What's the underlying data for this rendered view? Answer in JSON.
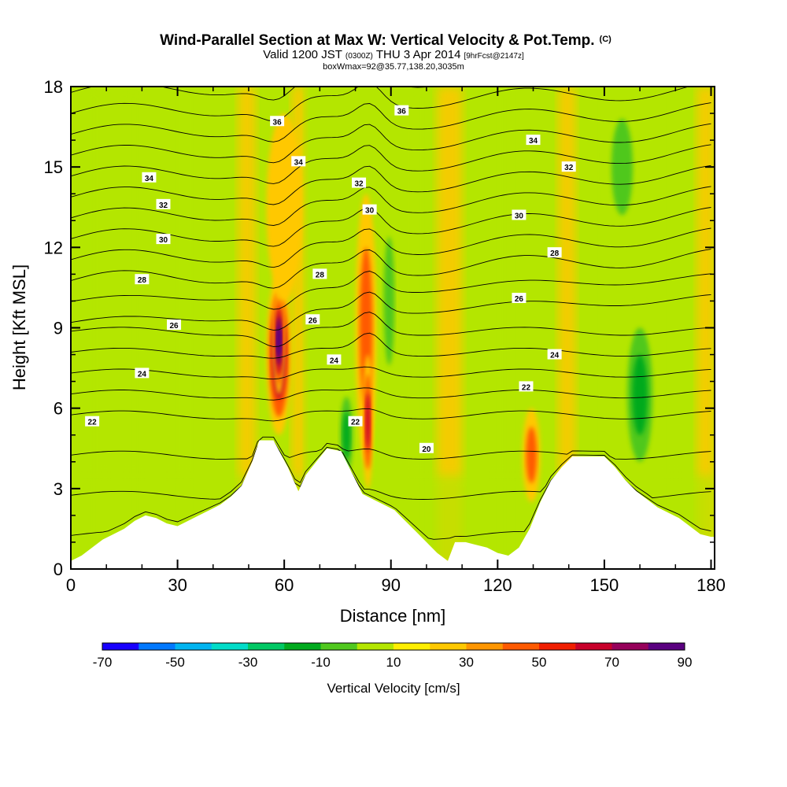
{
  "header": {
    "title_main": "Wind-Parallel Section at Max W: Vertical Velocity & Pot.Temp.",
    "title_c": "(C)",
    "sub_valid": "Valid 1200 JST",
    "sub_z": "(0300Z)",
    "sub_date": "THU 3 Apr 2014",
    "sub_fcst": "[9hrFcst@2147z]",
    "box_line": "boxWmax=92@35.77,138.20,3035m"
  },
  "chart_data": {
    "type": "heatmap",
    "xlabel": "Distance [nm]",
    "ylabel": "Height [Kft MSL]",
    "xlim": [
      0,
      181
    ],
    "ylim": [
      0,
      18
    ],
    "xticks": [
      "0",
      "30",
      "60",
      "90",
      "120",
      "150",
      "180"
    ],
    "yticks": [
      "0",
      "3",
      "6",
      "9",
      "12",
      "15",
      "18"
    ],
    "colorbar": {
      "label": "Vertical Velocity [cm/s]",
      "tick_labels": [
        "-70",
        "-50",
        "-30",
        "-10",
        "10",
        "30",
        "50",
        "70",
        "90"
      ],
      "colors": [
        "#1800ff",
        "#0078ff",
        "#00b4f0",
        "#00dcc8",
        "#00c864",
        "#00aa1e",
        "#50c81e",
        "#b4e600",
        "#ffee00",
        "#ffc800",
        "#ff9600",
        "#ff5a00",
        "#f01e00",
        "#c8002a",
        "#96005a",
        "#5a0080"
      ]
    },
    "terrain_kft": [
      [
        0,
        0.3
      ],
      [
        3,
        0.5
      ],
      [
        6,
        0.8
      ],
      [
        9,
        1.1
      ],
      [
        12,
        1.3
      ],
      [
        15,
        1.5
      ],
      [
        18,
        1.8
      ],
      [
        21,
        2.0
      ],
      [
        24,
        1.9
      ],
      [
        27,
        1.7
      ],
      [
        30,
        1.6
      ],
      [
        33,
        1.8
      ],
      [
        36,
        2.0
      ],
      [
        39,
        2.2
      ],
      [
        42,
        2.4
      ],
      [
        45,
        2.7
      ],
      [
        48,
        3.1
      ],
      [
        51,
        4.0
      ],
      [
        53,
        4.8
      ],
      [
        57,
        4.8
      ],
      [
        61,
        3.8
      ],
      [
        64,
        2.9
      ],
      [
        66,
        3.5
      ],
      [
        69,
        4.0
      ],
      [
        72,
        4.5
      ],
      [
        76,
        4.4
      ],
      [
        79,
        3.6
      ],
      [
        82,
        2.8
      ],
      [
        85,
        2.6
      ],
      [
        88,
        2.4
      ],
      [
        91,
        2.2
      ],
      [
        94,
        1.8
      ],
      [
        97,
        1.4
      ],
      [
        100,
        1.0
      ],
      [
        103,
        0.6
      ],
      [
        106,
        0.3
      ],
      [
        108,
        1.0
      ],
      [
        111,
        1.0
      ],
      [
        114,
        0.9
      ],
      [
        117,
        0.8
      ],
      [
        120,
        0.6
      ],
      [
        123,
        0.5
      ],
      [
        126,
        0.8
      ],
      [
        129,
        1.5
      ],
      [
        132,
        2.5
      ],
      [
        135,
        3.3
      ],
      [
        138,
        3.8
      ],
      [
        141,
        4.2
      ],
      [
        150,
        4.2
      ],
      [
        153,
        3.8
      ],
      [
        156,
        3.3
      ],
      [
        159,
        2.9
      ],
      [
        162,
        2.6
      ],
      [
        165,
        2.3
      ],
      [
        168,
        2.1
      ],
      [
        171,
        1.9
      ],
      [
        174,
        1.6
      ],
      [
        177,
        1.3
      ],
      [
        180,
        1.2
      ],
      [
        181,
        1.2
      ]
    ],
    "w_cells": [
      {
        "x": [
          55,
          62
        ],
        "y": [
          5,
          11
        ],
        "w": 75
      },
      {
        "x": [
          57,
          60
        ],
        "y": [
          6.5,
          10.5
        ],
        "w": 90
      },
      {
        "x": [
          80,
          86
        ],
        "y": [
          4,
          14
        ],
        "w": 30
      },
      {
        "x": [
          82,
          85
        ],
        "y": [
          3,
          8
        ],
        "w": 60
      },
      {
        "x": [
          127,
          132
        ],
        "y": [
          2.5,
          6
        ],
        "w": 45
      },
      {
        "x": [
          55,
          65
        ],
        "y": [
          10,
          17
        ],
        "w": 15
      },
      {
        "x": [
          75,
          80
        ],
        "y": [
          3,
          7
        ],
        "w": -30
      },
      {
        "x": [
          87,
          92
        ],
        "y": [
          6,
          14
        ],
        "w": -20
      },
      {
        "x": [
          150,
          160
        ],
        "y": [
          12,
          18
        ],
        "w": -25
      },
      {
        "x": [
          155,
          165
        ],
        "y": [
          3,
          10
        ],
        "w": -30
      }
    ],
    "contour_labels": [
      {
        "text": "36",
        "x": 58,
        "y": 16.7
      },
      {
        "text": "36",
        "x": 93,
        "y": 17.1
      },
      {
        "text": "34",
        "x": 64,
        "y": 15.2
      },
      {
        "text": "34",
        "x": 22,
        "y": 14.6
      },
      {
        "text": "34",
        "x": 130,
        "y": 16.0
      },
      {
        "text": "32",
        "x": 26,
        "y": 13.6
      },
      {
        "text": "32",
        "x": 81,
        "y": 14.4
      },
      {
        "text": "32",
        "x": 140,
        "y": 15.0
      },
      {
        "text": "30",
        "x": 26,
        "y": 12.3
      },
      {
        "text": "30",
        "x": 84,
        "y": 13.4
      },
      {
        "text": "30",
        "x": 126,
        "y": 13.2
      },
      {
        "text": "28",
        "x": 20,
        "y": 10.8
      },
      {
        "text": "28",
        "x": 70,
        "y": 11.0
      },
      {
        "text": "28",
        "x": 136,
        "y": 11.8
      },
      {
        "text": "26",
        "x": 29,
        "y": 9.1
      },
      {
        "text": "26",
        "x": 68,
        "y": 9.3
      },
      {
        "text": "26",
        "x": 126,
        "y": 10.1
      },
      {
        "text": "24",
        "x": 20,
        "y": 7.3
      },
      {
        "text": "24",
        "x": 74,
        "y": 7.8
      },
      {
        "text": "24",
        "x": 136,
        "y": 8.0
      },
      {
        "text": "22",
        "x": 6,
        "y": 5.5
      },
      {
        "text": "22",
        "x": 80,
        "y": 5.5
      },
      {
        "text": "22",
        "x": 128,
        "y": 6.8
      },
      {
        "text": "20",
        "x": 100,
        "y": 4.5
      }
    ]
  }
}
